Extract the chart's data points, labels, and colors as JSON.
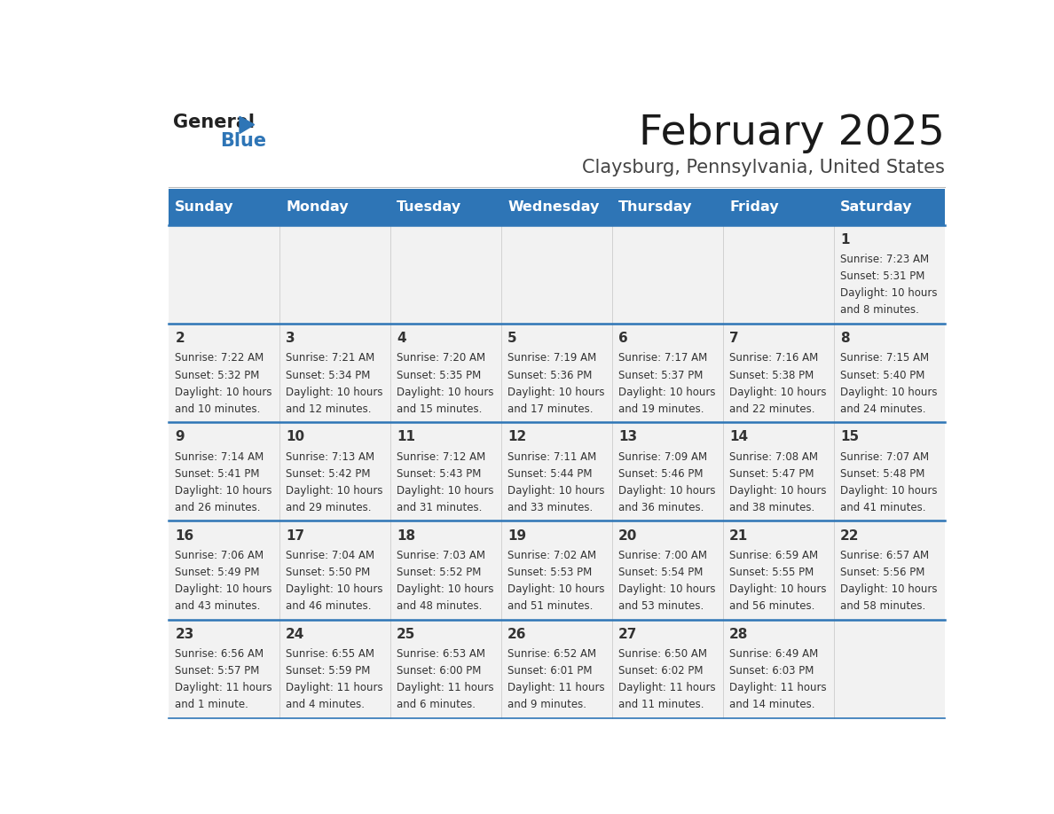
{
  "title": "February 2025",
  "subtitle": "Claysburg, Pennsylvania, United States",
  "header_bg": "#2E75B6",
  "header_text_color": "#FFFFFF",
  "day_headers": [
    "Sunday",
    "Monday",
    "Tuesday",
    "Wednesday",
    "Thursday",
    "Friday",
    "Saturday"
  ],
  "row_bg_light": "#F2F2F2",
  "cell_border_color": "#2E75B6",
  "day_number_color": "#333333",
  "info_text_color": "#333333",
  "logo_general_color": "#222222",
  "logo_blue_color": "#2E75B6",
  "calendar_data": [
    [
      null,
      null,
      null,
      null,
      null,
      null,
      {
        "day": "1",
        "sunrise": "7:23 AM",
        "sunset": "5:31 PM",
        "daylight": "10 hours and 8 minutes."
      }
    ],
    [
      {
        "day": "2",
        "sunrise": "7:22 AM",
        "sunset": "5:32 PM",
        "daylight": "10 hours and 10 minutes."
      },
      {
        "day": "3",
        "sunrise": "7:21 AM",
        "sunset": "5:34 PM",
        "daylight": "10 hours and 12 minutes."
      },
      {
        "day": "4",
        "sunrise": "7:20 AM",
        "sunset": "5:35 PM",
        "daylight": "10 hours and 15 minutes."
      },
      {
        "day": "5",
        "sunrise": "7:19 AM",
        "sunset": "5:36 PM",
        "daylight": "10 hours and 17 minutes."
      },
      {
        "day": "6",
        "sunrise": "7:17 AM",
        "sunset": "5:37 PM",
        "daylight": "10 hours and 19 minutes."
      },
      {
        "day": "7",
        "sunrise": "7:16 AM",
        "sunset": "5:38 PM",
        "daylight": "10 hours and 22 minutes."
      },
      {
        "day": "8",
        "sunrise": "7:15 AM",
        "sunset": "5:40 PM",
        "daylight": "10 hours and 24 minutes."
      }
    ],
    [
      {
        "day": "9",
        "sunrise": "7:14 AM",
        "sunset": "5:41 PM",
        "daylight": "10 hours and 26 minutes."
      },
      {
        "day": "10",
        "sunrise": "7:13 AM",
        "sunset": "5:42 PM",
        "daylight": "10 hours and 29 minutes."
      },
      {
        "day": "11",
        "sunrise": "7:12 AM",
        "sunset": "5:43 PM",
        "daylight": "10 hours and 31 minutes."
      },
      {
        "day": "12",
        "sunrise": "7:11 AM",
        "sunset": "5:44 PM",
        "daylight": "10 hours and 33 minutes."
      },
      {
        "day": "13",
        "sunrise": "7:09 AM",
        "sunset": "5:46 PM",
        "daylight": "10 hours and 36 minutes."
      },
      {
        "day": "14",
        "sunrise": "7:08 AM",
        "sunset": "5:47 PM",
        "daylight": "10 hours and 38 minutes."
      },
      {
        "day": "15",
        "sunrise": "7:07 AM",
        "sunset": "5:48 PM",
        "daylight": "10 hours and 41 minutes."
      }
    ],
    [
      {
        "day": "16",
        "sunrise": "7:06 AM",
        "sunset": "5:49 PM",
        "daylight": "10 hours and 43 minutes."
      },
      {
        "day": "17",
        "sunrise": "7:04 AM",
        "sunset": "5:50 PM",
        "daylight": "10 hours and 46 minutes."
      },
      {
        "day": "18",
        "sunrise": "7:03 AM",
        "sunset": "5:52 PM",
        "daylight": "10 hours and 48 minutes."
      },
      {
        "day": "19",
        "sunrise": "7:02 AM",
        "sunset": "5:53 PM",
        "daylight": "10 hours and 51 minutes."
      },
      {
        "day": "20",
        "sunrise": "7:00 AM",
        "sunset": "5:54 PM",
        "daylight": "10 hours and 53 minutes."
      },
      {
        "day": "21",
        "sunrise": "6:59 AM",
        "sunset": "5:55 PM",
        "daylight": "10 hours and 56 minutes."
      },
      {
        "day": "22",
        "sunrise": "6:57 AM",
        "sunset": "5:56 PM",
        "daylight": "10 hours and 58 minutes."
      }
    ],
    [
      {
        "day": "23",
        "sunrise": "6:56 AM",
        "sunset": "5:57 PM",
        "daylight": "11 hours and 1 minute."
      },
      {
        "day": "24",
        "sunrise": "6:55 AM",
        "sunset": "5:59 PM",
        "daylight": "11 hours and 4 minutes."
      },
      {
        "day": "25",
        "sunrise": "6:53 AM",
        "sunset": "6:00 PM",
        "daylight": "11 hours and 6 minutes."
      },
      {
        "day": "26",
        "sunrise": "6:52 AM",
        "sunset": "6:01 PM",
        "daylight": "11 hours and 9 minutes."
      },
      {
        "day": "27",
        "sunrise": "6:50 AM",
        "sunset": "6:02 PM",
        "daylight": "11 hours and 11 minutes."
      },
      {
        "day": "28",
        "sunrise": "6:49 AM",
        "sunset": "6:03 PM",
        "daylight": "11 hours and 14 minutes."
      },
      null
    ]
  ]
}
